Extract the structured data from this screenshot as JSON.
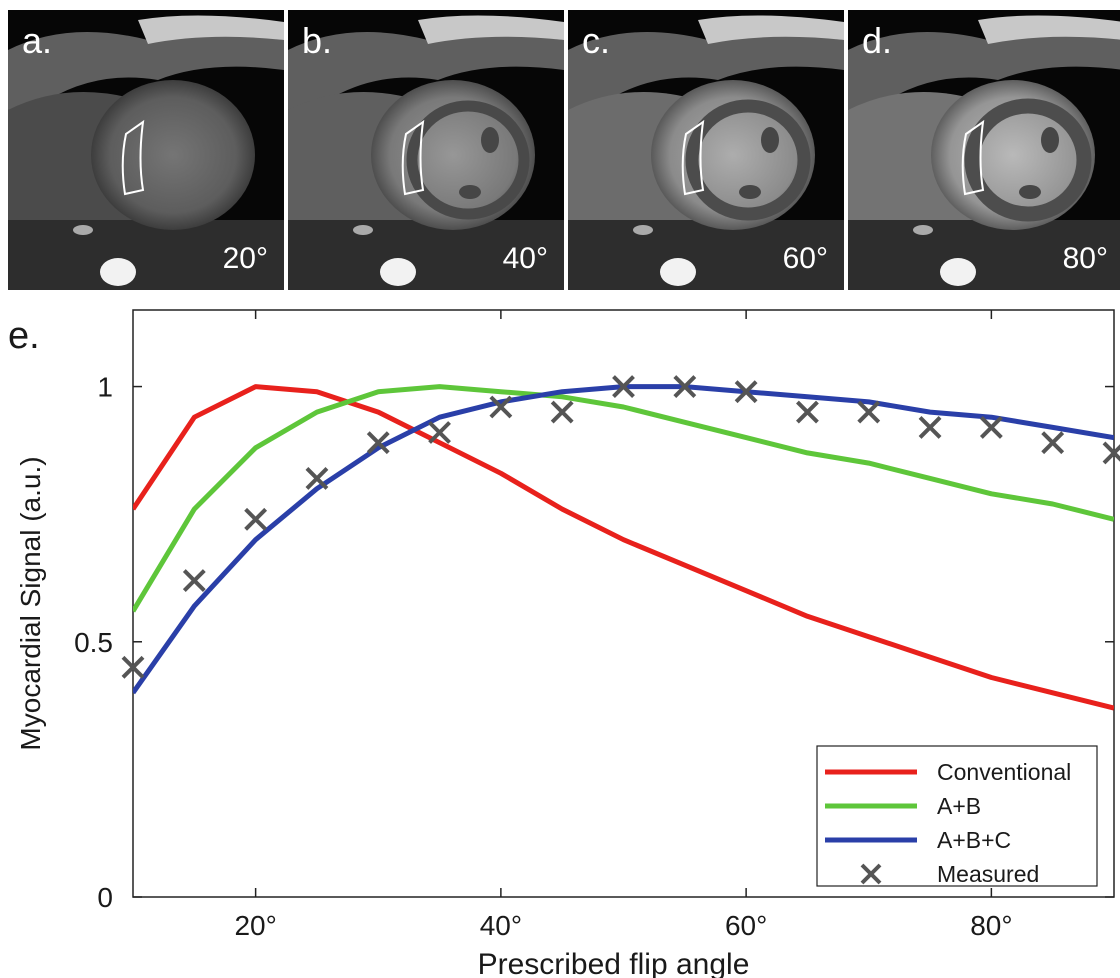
{
  "panels": [
    {
      "letter": "a.",
      "angle": "20°",
      "brightness": 0.45
    },
    {
      "letter": "b.",
      "angle": "40°",
      "brightness": 0.65
    },
    {
      "letter": "c.",
      "angle": "60°",
      "brightness": 0.78
    },
    {
      "letter": "d.",
      "angle": "80°",
      "brightness": 0.85
    }
  ],
  "chart_data": {
    "type": "line",
    "panel_label": "e.",
    "xlabel": "Prescribed flip angle",
    "ylabel": "Myocardial Signal (a.u.)",
    "xlim": [
      10,
      90
    ],
    "ylim": [
      0,
      1.15
    ],
    "xticks": [
      20,
      40,
      60,
      80
    ],
    "xtick_labels": [
      "20°",
      "40°",
      "60°",
      "80°"
    ],
    "yticks": [
      0,
      0.5,
      1
    ],
    "ytick_labels": [
      "0",
      "0.5",
      "1"
    ],
    "legend_position": "bottom-right",
    "series": [
      {
        "name": "Conventional",
        "color": "#e8211c",
        "x": [
          10,
          15,
          20,
          25,
          30,
          35,
          40,
          45,
          50,
          55,
          60,
          65,
          70,
          75,
          80,
          85,
          90
        ],
        "y": [
          0.76,
          0.94,
          1.0,
          0.99,
          0.95,
          0.89,
          0.83,
          0.76,
          0.7,
          0.65,
          0.6,
          0.55,
          0.51,
          0.47,
          0.43,
          0.4,
          0.37
        ]
      },
      {
        "name": "A+B",
        "color": "#5ec63a",
        "x": [
          10,
          15,
          20,
          25,
          30,
          35,
          40,
          45,
          50,
          55,
          60,
          65,
          70,
          75,
          80,
          85,
          90
        ],
        "y": [
          0.56,
          0.76,
          0.88,
          0.95,
          0.99,
          1.0,
          0.99,
          0.98,
          0.96,
          0.93,
          0.9,
          0.87,
          0.85,
          0.82,
          0.79,
          0.77,
          0.74
        ]
      },
      {
        "name": "A+B+C",
        "color": "#2a3fa8",
        "x": [
          10,
          15,
          20,
          25,
          30,
          35,
          40,
          45,
          50,
          55,
          60,
          65,
          70,
          75,
          80,
          85,
          90
        ],
        "y": [
          0.4,
          0.57,
          0.7,
          0.8,
          0.88,
          0.94,
          0.97,
          0.99,
          1.0,
          1.0,
          0.99,
          0.98,
          0.97,
          0.95,
          0.94,
          0.92,
          0.9
        ]
      }
    ],
    "measured": {
      "name": "Measured",
      "color": "#555555",
      "x": [
        10,
        15,
        20,
        25,
        30,
        35,
        40,
        45,
        50,
        55,
        60,
        65,
        70,
        75,
        80,
        85,
        90
      ],
      "y": [
        0.45,
        0.62,
        0.74,
        0.82,
        0.89,
        0.91,
        0.96,
        0.95,
        1.0,
        1.0,
        0.99,
        0.95,
        0.95,
        0.92,
        0.92,
        0.89,
        0.87
      ]
    }
  }
}
